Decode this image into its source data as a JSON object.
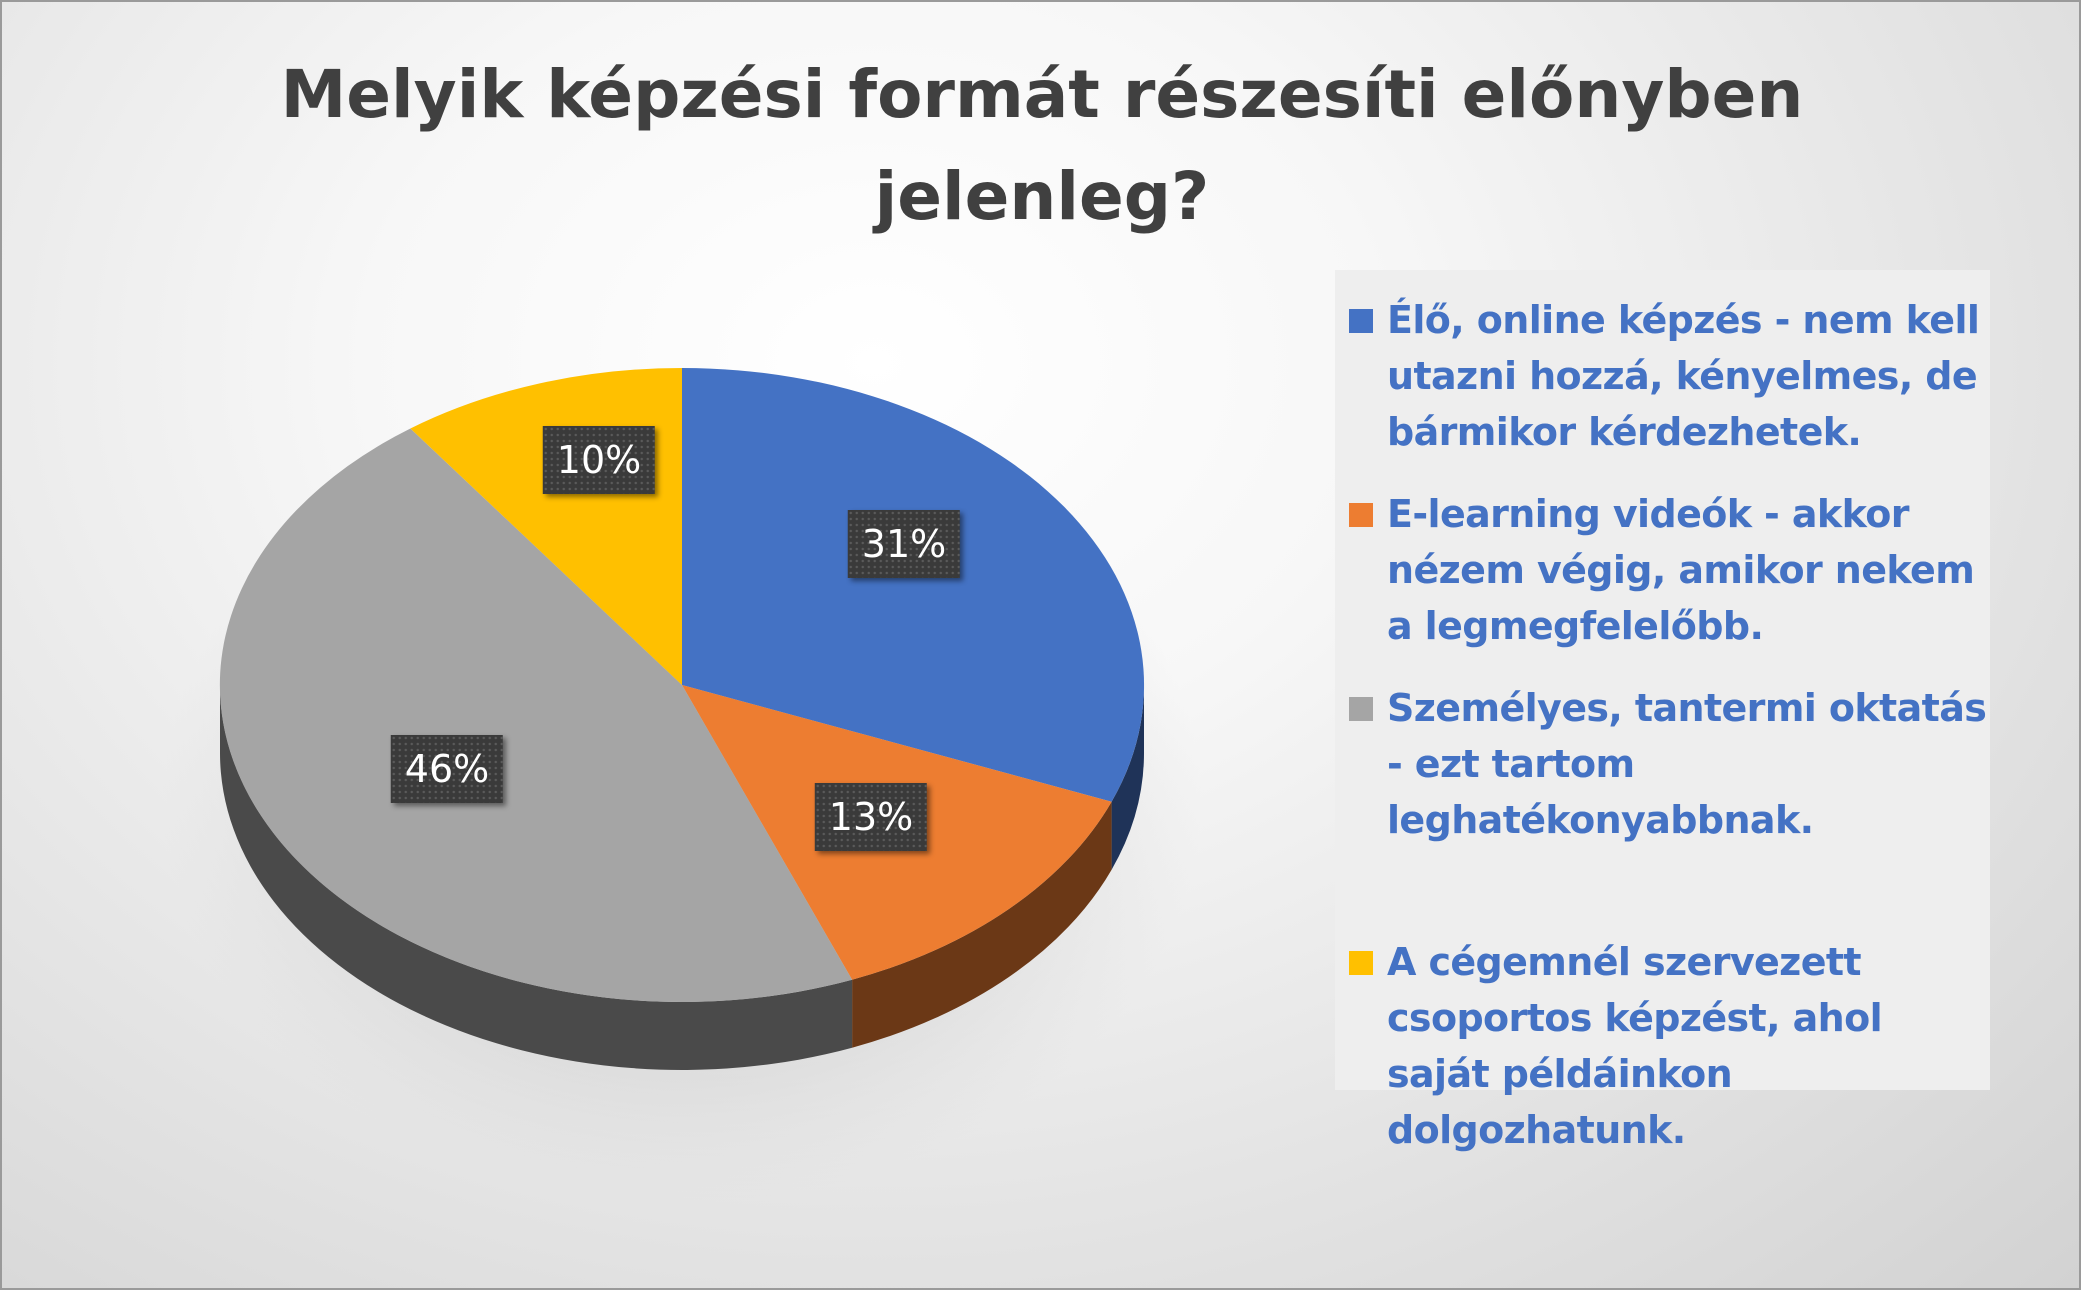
{
  "chart_data": {
    "type": "pie",
    "title": "Melyik képzési formát részesíti előnyben jelenleg?",
    "categories": [
      "Élő, online képzés - nem kell utazni hozzá, kényelmes, de bármikor kérdezhetek.",
      "E-learning videók - akkor nézem végig, amikor nekem a legmegfelelőbb.",
      "Személyes, tantermi oktatás - ezt tartom leghatékonyabbnak.",
      "A cégemnél szervezett csoportos képzést, ahol saját példáinkon dolgozhatunk."
    ],
    "values": [
      31,
      13,
      46,
      10
    ],
    "value_labels": [
      "31%",
      "13%",
      "46%",
      "10%"
    ],
    "colors": [
      "#4472c4",
      "#ed7d31",
      "#a5a5a5",
      "#ffc000"
    ],
    "legend_placement": "right",
    "style": "3d"
  }
}
